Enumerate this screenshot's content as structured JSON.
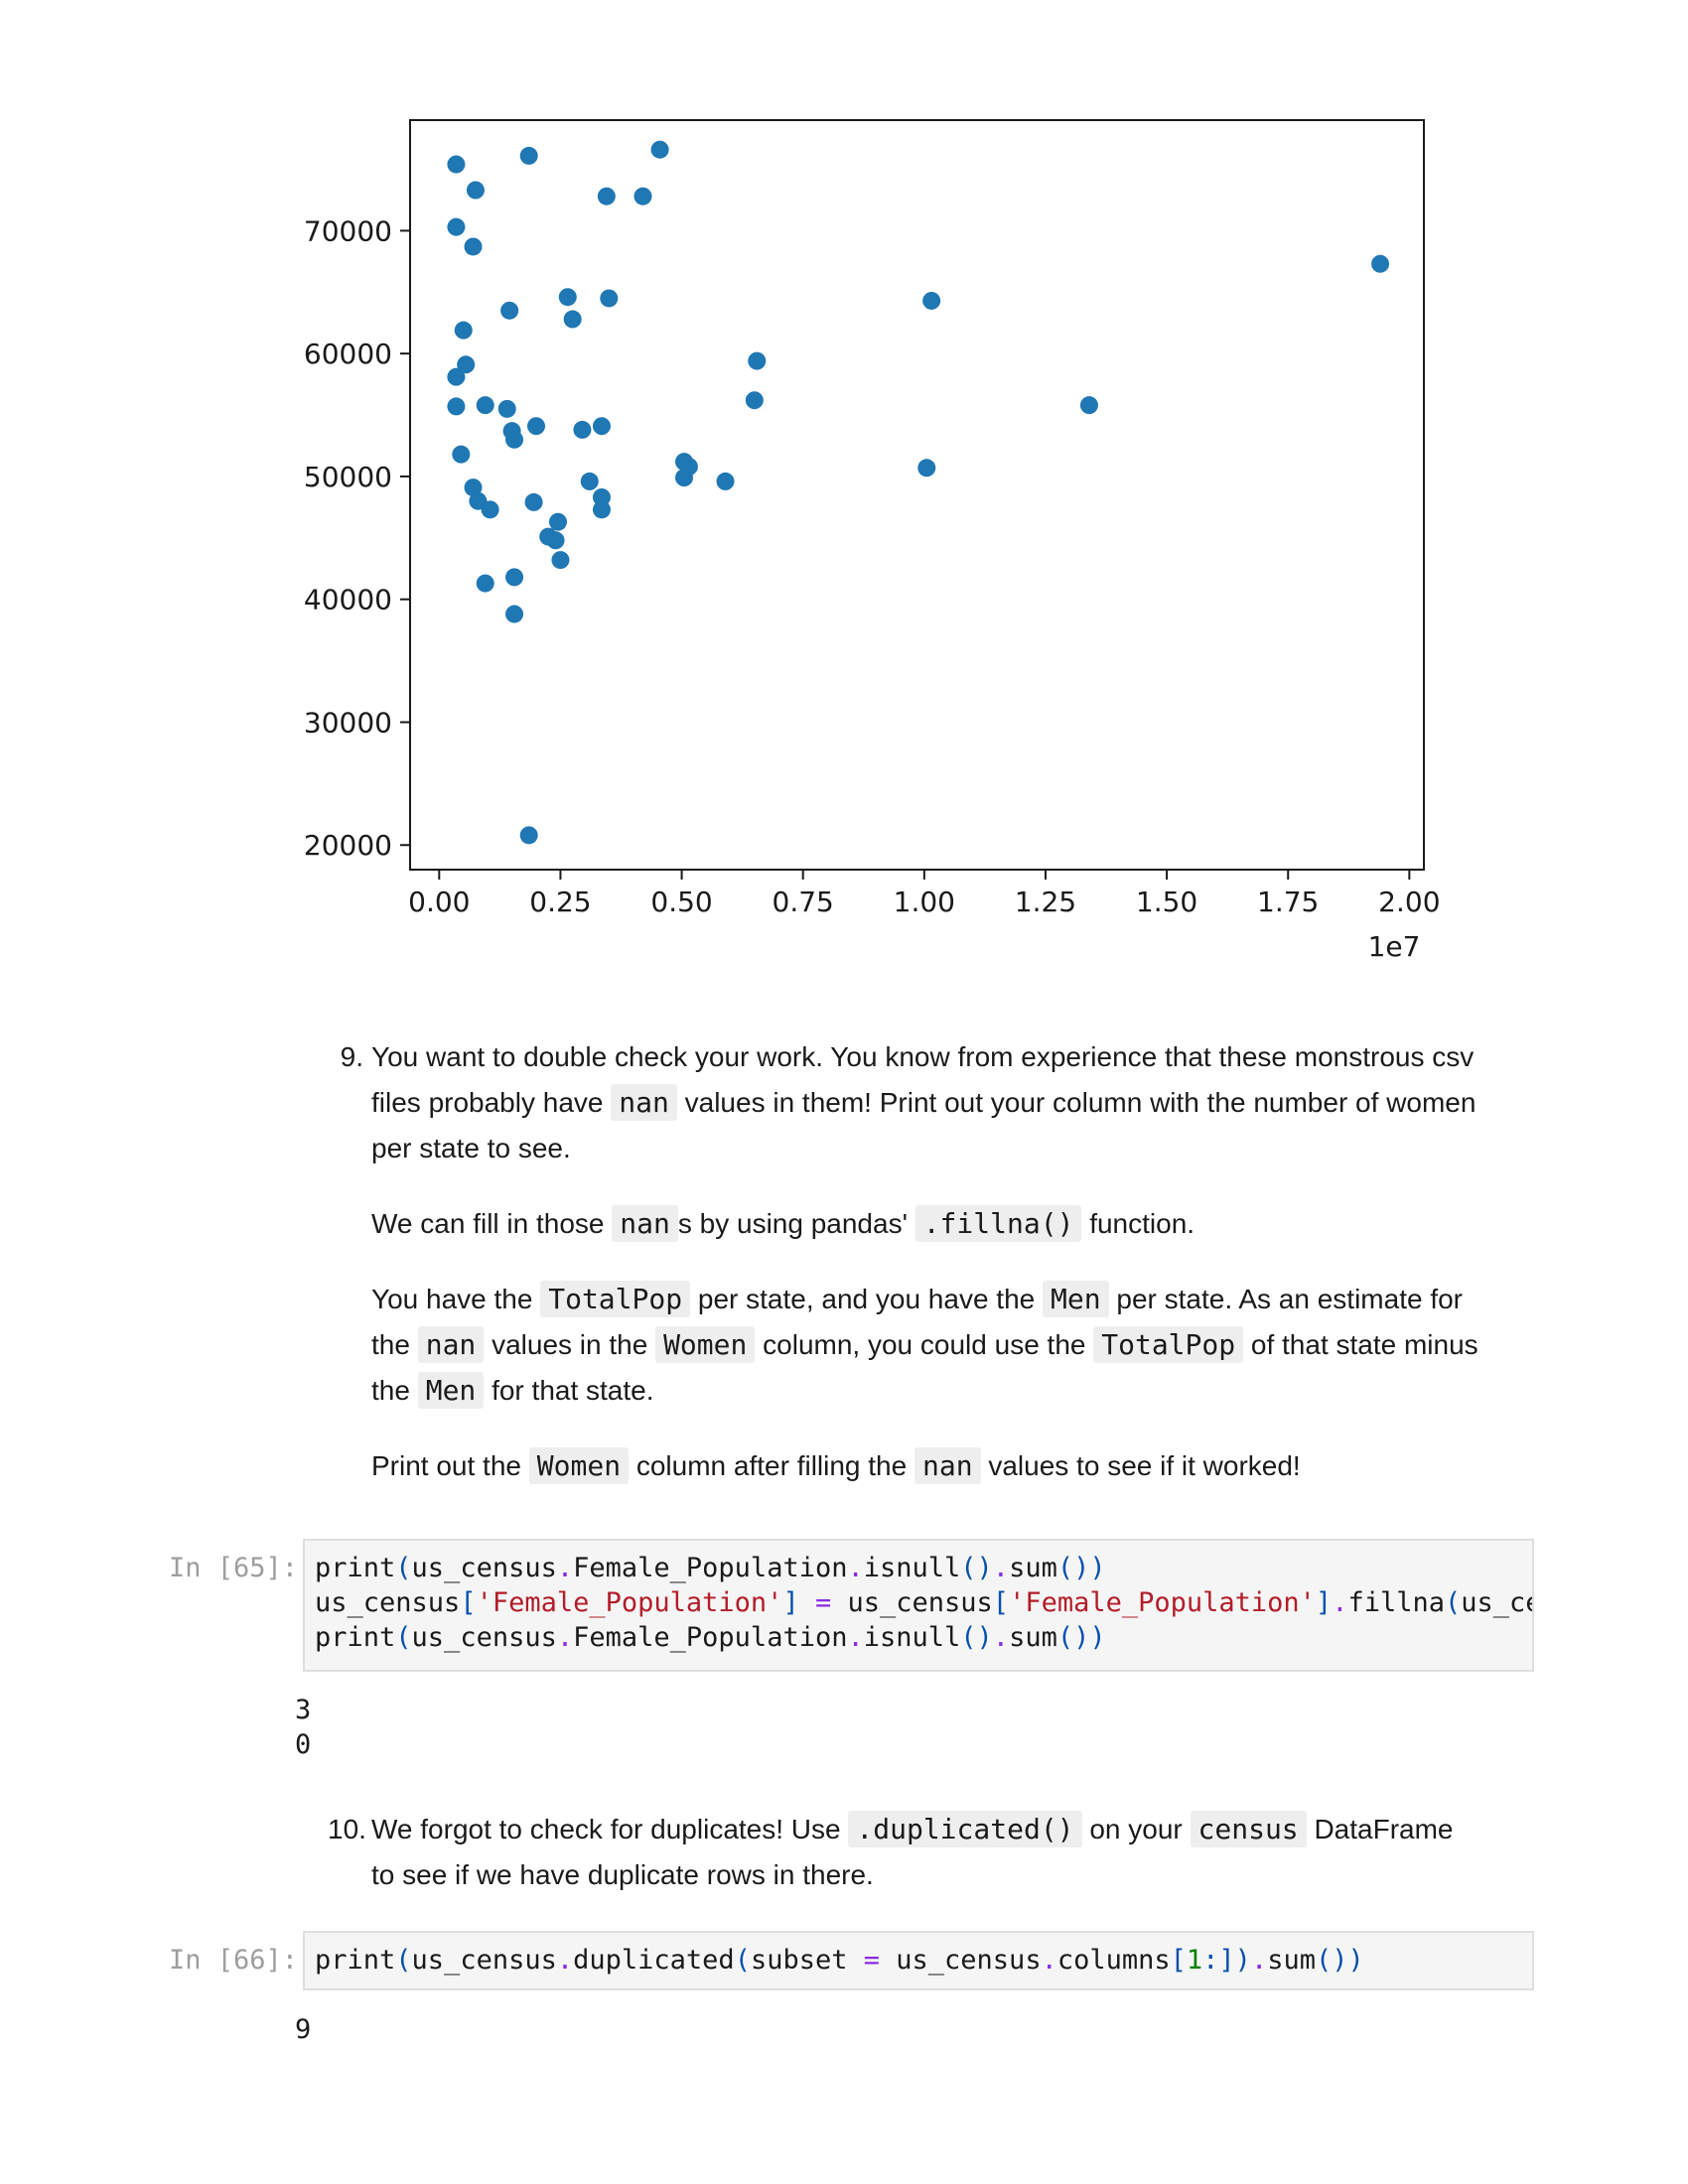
{
  "chart_data": {
    "type": "scatter",
    "x_multiplier_label": "1e7",
    "xlim": [
      -0.06,
      2.03
    ],
    "ylim": [
      18000,
      79000
    ],
    "xticks": [
      0.0,
      0.25,
      0.5,
      0.75,
      1.0,
      1.25,
      1.5,
      1.75,
      2.0
    ],
    "xtick_labels": [
      "0.00",
      "0.25",
      "0.50",
      "0.75",
      "1.00",
      "1.25",
      "1.50",
      "1.75",
      "2.00"
    ],
    "yticks": [
      20000,
      30000,
      40000,
      50000,
      60000,
      70000
    ],
    "ytick_labels": [
      "20000",
      "30000",
      "40000",
      "50000",
      "60000",
      "70000"
    ],
    "marker_color": "#1f77b4",
    "points": [
      {
        "x": 0.035,
        "y": 75400
      },
      {
        "x": 0.075,
        "y": 73300
      },
      {
        "x": 0.185,
        "y": 76100
      },
      {
        "x": 0.455,
        "y": 76600
      },
      {
        "x": 0.345,
        "y": 72800
      },
      {
        "x": 0.42,
        "y": 72800
      },
      {
        "x": 0.035,
        "y": 70300
      },
      {
        "x": 0.07,
        "y": 68700
      },
      {
        "x": 1.94,
        "y": 67300
      },
      {
        "x": 0.265,
        "y": 64600
      },
      {
        "x": 0.35,
        "y": 64500
      },
      {
        "x": 1.015,
        "y": 64300
      },
      {
        "x": 0.145,
        "y": 63500
      },
      {
        "x": 0.275,
        "y": 62800
      },
      {
        "x": 0.05,
        "y": 61900
      },
      {
        "x": 0.655,
        "y": 59400
      },
      {
        "x": 0.055,
        "y": 59100
      },
      {
        "x": 0.035,
        "y": 58100
      },
      {
        "x": 0.65,
        "y": 56200
      },
      {
        "x": 1.34,
        "y": 55800
      },
      {
        "x": 0.035,
        "y": 55700
      },
      {
        "x": 0.095,
        "y": 55800
      },
      {
        "x": 0.14,
        "y": 55500
      },
      {
        "x": 0.2,
        "y": 54100
      },
      {
        "x": 0.15,
        "y": 53700
      },
      {
        "x": 0.155,
        "y": 53000
      },
      {
        "x": 0.295,
        "y": 53800
      },
      {
        "x": 0.335,
        "y": 54100
      },
      {
        "x": 0.045,
        "y": 51800
      },
      {
        "x": 0.505,
        "y": 51200
      },
      {
        "x": 0.515,
        "y": 50800
      },
      {
        "x": 1.005,
        "y": 50700
      },
      {
        "x": 0.505,
        "y": 49900
      },
      {
        "x": 0.59,
        "y": 49600
      },
      {
        "x": 0.31,
        "y": 49600
      },
      {
        "x": 0.07,
        "y": 49100
      },
      {
        "x": 0.335,
        "y": 48300
      },
      {
        "x": 0.08,
        "y": 48000
      },
      {
        "x": 0.195,
        "y": 47900
      },
      {
        "x": 0.105,
        "y": 47300
      },
      {
        "x": 0.335,
        "y": 47300
      },
      {
        "x": 0.245,
        "y": 46300
      },
      {
        "x": 0.225,
        "y": 45100
      },
      {
        "x": 0.24,
        "y": 44800
      },
      {
        "x": 0.25,
        "y": 43200
      },
      {
        "x": 0.155,
        "y": 41800
      },
      {
        "x": 0.095,
        "y": 41300
      },
      {
        "x": 0.155,
        "y": 38800
      },
      {
        "x": 0.185,
        "y": 20800
      }
    ]
  },
  "q9": {
    "num": "9.",
    "p1_a": "You want to double check your work. You know from experience that these monstrous csv files probably have",
    "p1_code": "nan",
    "p1_b": "values in them! Print out your column with the number of women per state to see.",
    "p2_a": "We can fill in those",
    "p2_code1": "nan",
    "p2_b": "s by using pandas'",
    "p2_code2": ".fillna()",
    "p2_c": "function.",
    "p3_a": "You have the",
    "p3_code1": "TotalPop",
    "p3_b": "per state, and you have the",
    "p3_code2": "Men",
    "p3_c": "per state. As an estimate for the",
    "p3_code3": "nan",
    "p3_d": "values in the",
    "p3_code4": "Women",
    "p3_e": "column, you could use the",
    "p3_code5": "TotalPop",
    "p3_f": "of that state minus the",
    "p3_code6": "Men",
    "p3_g": "for that state.",
    "p4_a": "Print out the",
    "p4_code1": "Women",
    "p4_b": "column after filling the",
    "p4_code2": "nan",
    "p4_c": "values to see if it worked!"
  },
  "cell65": {
    "prompt": "In [65]:",
    "outputs": [
      "3",
      "0"
    ]
  },
  "q10": {
    "num": "10.",
    "a": "We forgot to check for duplicates! Use",
    "code1": ".duplicated()",
    "b": "on your",
    "code2": "census",
    "c": "DataFrame to see if we have duplicate rows in there."
  },
  "cell66": {
    "prompt": "In [66]:",
    "outputs": [
      "9"
    ]
  }
}
